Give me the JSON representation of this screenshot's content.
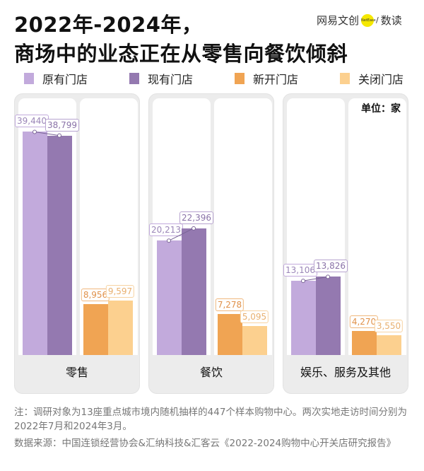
{
  "title_line1": "2022年-2024年，",
  "title_line2": "商场中的业态正在从零售向餐饮倾斜",
  "brand": {
    "name": "网易文创",
    "badge": "NetEase",
    "sep": "/",
    "sub": "数读"
  },
  "legend": [
    {
      "label": "原有门店",
      "color": "#c2aadc"
    },
    {
      "label": "现有门店",
      "color": "#9479b0"
    },
    {
      "label": "新开门店",
      "color": "#f0a453"
    },
    {
      "label": "关闭门店",
      "color": "#fcd08f"
    }
  ],
  "unit": "单位：家",
  "chart_data": {
    "type": "bar",
    "categories": [
      "零售",
      "餐饮",
      "娱乐、服务及其他"
    ],
    "series": [
      {
        "name": "原有门店",
        "values": [
          39440,
          20213,
          13106
        ],
        "labels": [
          "39,440",
          "20,213",
          "13,106"
        ]
      },
      {
        "name": "现有门店",
        "values": [
          38799,
          22396,
          13826
        ],
        "labels": [
          "38,799",
          "22,396",
          "13,826"
        ]
      },
      {
        "name": "新开门店",
        "values": [
          8956,
          7278,
          4270
        ],
        "labels": [
          "8,956",
          "7,278",
          "4,270"
        ]
      },
      {
        "name": "关闭门店",
        "values": [
          9597,
          5095,
          3550
        ],
        "labels": [
          "9,597",
          "5,095",
          "3,550"
        ]
      }
    ],
    "ylim": [
      0,
      40000
    ]
  },
  "note": "注：调研对象为13座重点城市境内随机抽样的447个样本购物中心。两次实地走访时间分别为2022年7月和2024年3月。",
  "source": "数据来源：中国连锁经营协会&汇纳科技&汇客云《2022-2024购物中心开关店研究报告》"
}
